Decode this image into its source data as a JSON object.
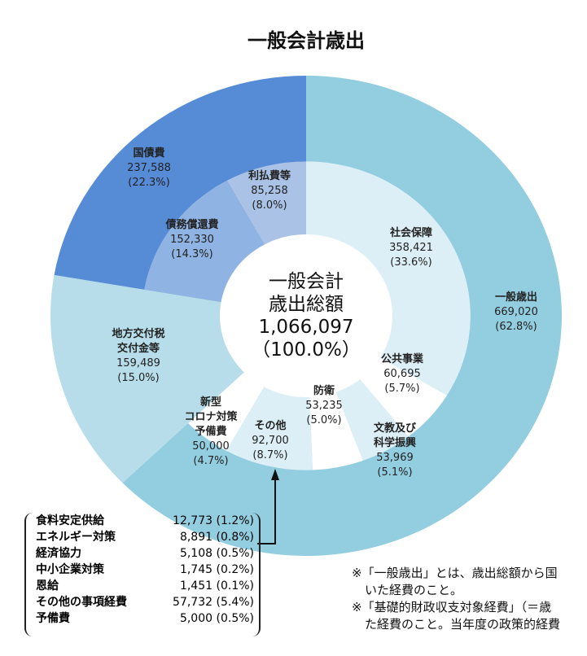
{
  "chart_data": {
    "type": "pie",
    "title": "一般会計歳出",
    "center": {
      "line1": "一般会計",
      "line2": "歳出総額",
      "value": "1,066,097",
      "pct": "（100.0%）"
    },
    "outer_ring": [
      {
        "name": "一般歳出",
        "value": 669020,
        "value_label": "669,020",
        "pct": "(62.8%)",
        "color": "#93cde0"
      },
      {
        "name": "地方交付税交付金等",
        "name_line1": "地方交付税",
        "name_line2": "交付金等",
        "value": 159489,
        "value_label": "159,489",
        "pct": "(15.0%)",
        "color": "#b6dde9"
      },
      {
        "name": "国債費",
        "value": 237588,
        "value_label": "237,588",
        "pct": "(22.3%)",
        "color": "#568bd6"
      }
    ],
    "inner_ring": [
      {
        "name": "社会保障",
        "value": 358421,
        "value_label": "358,421",
        "pct": "(33.6%)",
        "color": "#ddeff6"
      },
      {
        "name": "公共事業",
        "value": 60695,
        "value_label": "60,695",
        "pct": "(5.7%)",
        "color": "#ffffff"
      },
      {
        "name": "文教及び科学振興",
        "name_line1": "文教及び",
        "name_line2": "科学振興",
        "value": 53969,
        "value_label": "53,969",
        "pct": "(5.1%)",
        "color": "#ddeff6"
      },
      {
        "name": "防衛",
        "value": 53235,
        "value_label": "53,235",
        "pct": "(5.0%)",
        "color": "#ffffff"
      },
      {
        "name": "その他",
        "value": 92700,
        "value_label": "92,700",
        "pct": "(8.7%)",
        "color": "#ddeff6"
      },
      {
        "name": "新型コロナ対策予備費",
        "name_line1": "新型",
        "name_line2": "コロナ対策",
        "name_line3": "予備費",
        "value": 50000,
        "value_label": "50,000",
        "pct": "(4.7%)",
        "color": "#ffffff"
      },
      {
        "name": "",
        "value": 159489,
        "color": "#b6dde9"
      },
      {
        "name": "債務償還費",
        "value": 152330,
        "value_label": "152,330",
        "pct": "(14.3%)",
        "color": "#8fb3e2"
      },
      {
        "name": "利払費等",
        "value": 85258,
        "value_label": "85,258",
        "pct": "(8.0%)",
        "color": "#a9c2e6"
      }
    ],
    "other_breakdown": [
      {
        "name": "食料安定供給",
        "value": "12,773",
        "pct": "(1.2%)"
      },
      {
        "name": "エネルギー対策",
        "value": "8,891",
        "pct": "(0.8%)"
      },
      {
        "name": "経済協力",
        "value": "5,108",
        "pct": "(0.5%)"
      },
      {
        "name": "中小企業対策",
        "value": "1,745",
        "pct": "(0.2%)"
      },
      {
        "name": "恩給",
        "value": "1,451",
        "pct": "(0.1%)"
      },
      {
        "name": "その他の事項経費",
        "value": "57,732",
        "pct": "(5.4%)"
      },
      {
        "name": "予備費",
        "value": "5,000",
        "pct": "(0.5%)"
      }
    ]
  },
  "notes": [
    "※「一般歳出」とは、歳出総額から国",
    "いた経費のこと。",
    "※「基礎的財政収支対象経費」（＝歳",
    "た経費のこと。当年度の政策的経費"
  ]
}
